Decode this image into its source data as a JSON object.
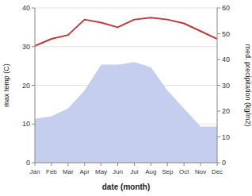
{
  "chart_data": {
    "type": "line",
    "xlabel": "date (month)",
    "ylabel": "max temp (C)",
    "y2label": "med. precipitation (kg/m2)",
    "categories": [
      "Jan",
      "Feb",
      "Mar",
      "Apr",
      "May",
      "Jun",
      "Jul",
      "Aug",
      "Sep",
      "Oct",
      "Nov",
      "Dec"
    ],
    "series": [
      {
        "type": "area",
        "axis": "y2",
        "color": "#c5ceef",
        "values": [
          17,
          18,
          21,
          28,
          38,
          38,
          39,
          37,
          28,
          21,
          14,
          14
        ]
      },
      {
        "type": "line",
        "color": "#c0393b",
        "values": [
          30.2,
          32.0,
          33.0,
          37.0,
          36.2,
          35.0,
          37.0,
          37.5,
          37.0,
          36.0,
          34.0,
          32.0
        ]
      }
    ],
    "ylim": [
      0,
      40
    ],
    "yticks": [
      0,
      10,
      20,
      30,
      40
    ],
    "y2lim": [
      0,
      60
    ],
    "y2ticks": [
      0,
      10,
      20,
      30,
      40,
      50,
      60
    ],
    "grid": true
  }
}
